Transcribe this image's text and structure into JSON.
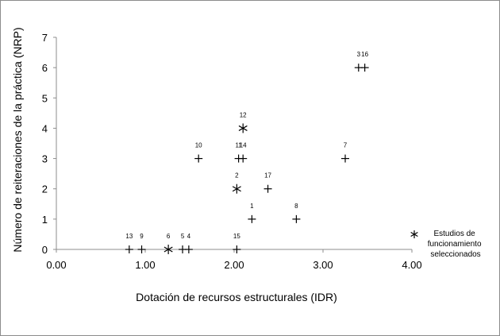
{
  "chart_data": {
    "type": "scatter",
    "title": "",
    "xlabel": "Dotación de recursos estructurales (IDR)",
    "ylabel": "Número de reiteraciones de la práctica (NRP)",
    "xlim": [
      0,
      4
    ],
    "ylim": [
      0,
      7
    ],
    "x_tick_labels": [
      "0.00",
      "1.00",
      "2.00",
      "3.00",
      "4.00"
    ],
    "y_tick_labels": [
      "0",
      "1",
      "2",
      "3",
      "4",
      "5",
      "6",
      "7"
    ],
    "grid": false,
    "legend_position": "right",
    "legend_label": "Estudios de funcionamiento seleccionados",
    "legend_lines": [
      "Estudios de",
      "funcionamiento",
      "seleccionados"
    ],
    "series": [
      {
        "marker": "plus",
        "points": [
          {
            "label": "13",
            "x": 0.82,
            "y": 0
          },
          {
            "label": "9",
            "x": 0.96,
            "y": 0
          },
          {
            "label": "5",
            "x": 1.42,
            "y": 0
          },
          {
            "label": "4",
            "x": 1.49,
            "y": 0
          },
          {
            "label": "15",
            "x": 2.03,
            "y": 0
          },
          {
            "label": "1",
            "x": 2.2,
            "y": 1
          },
          {
            "label": "8",
            "x": 2.7,
            "y": 1
          },
          {
            "label": "17",
            "x": 2.38,
            "y": 2
          },
          {
            "label": "10",
            "x": 1.6,
            "y": 3
          },
          {
            "label": "11",
            "x": 2.05,
            "y": 3
          },
          {
            "label": "14",
            "x": 2.1,
            "y": 3
          },
          {
            "label": "7",
            "x": 3.25,
            "y": 3
          },
          {
            "label": "3",
            "x": 3.4,
            "y": 6
          },
          {
            "label": "16",
            "x": 3.47,
            "y": 6
          }
        ]
      },
      {
        "name": "Estudios de funcionamiento seleccionados",
        "marker": "asterisk",
        "points": [
          {
            "label": "6",
            "x": 1.26,
            "y": 0
          },
          {
            "label": "2",
            "x": 2.03,
            "y": 2
          },
          {
            "label": "12",
            "x": 2.1,
            "y": 4
          }
        ]
      }
    ]
  }
}
